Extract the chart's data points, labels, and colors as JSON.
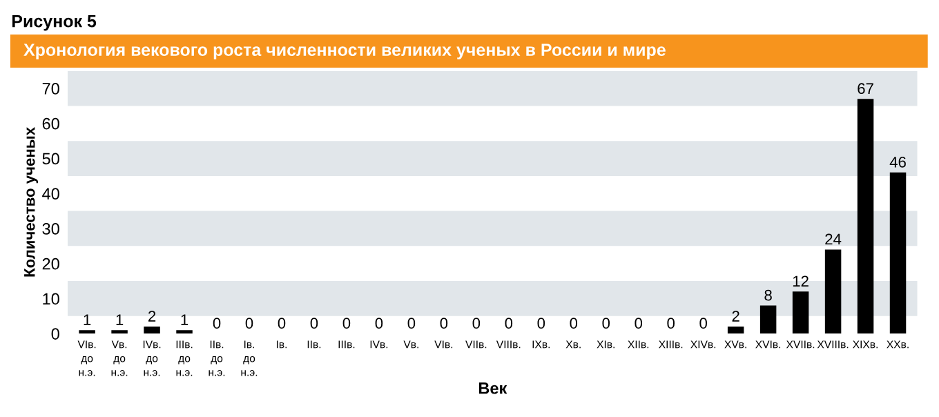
{
  "chart_data": {
    "type": "bar",
    "title": "Хронология векового роста численности великих ученых в России и мире",
    "annotations": [
      "Рисунок 5"
    ],
    "xlabel": "Век",
    "ylabel": "Количество ученых",
    "categories": [
      "VIв.\nдо\nн.э.",
      "Vв.\nдо\nн.э.",
      "IVв.\nдо\nн.э.",
      "IIIв.\nдо\nн.э.",
      "IIв.\nдо\nн.э.",
      "Iв.\nдо\nн.э.",
      "Iв.",
      "IIв.",
      "IIIв.",
      "IVв.",
      "Vв.",
      "VIв.",
      "VIIв.",
      "VIIIв.",
      "IXв.",
      "Xв.",
      "XIв.",
      "XIIв.",
      "XIIIв.",
      "XIVв.",
      "XVв.",
      "XVIв.",
      "XVIIв.",
      "XVIIIв.",
      "XIXв.",
      "XXв."
    ],
    "values": [
      1,
      1,
      2,
      1,
      0,
      0,
      0,
      0,
      0,
      0,
      0,
      0,
      0,
      0,
      0,
      0,
      0,
      0,
      0,
      0,
      2,
      8,
      12,
      24,
      67,
      46
    ],
    "color": "#000000",
    "ylim": [
      0,
      75
    ],
    "yticks": [
      0,
      10,
      20,
      30,
      40,
      50,
      60,
      70
    ],
    "bands": [
      {
        "axis": "y",
        "from": 5,
        "to": 15,
        "color": "#e1e6ea"
      },
      {
        "axis": "y",
        "from": 25,
        "to": 35,
        "color": "#e1e6ea"
      },
      {
        "axis": "y",
        "from": 45,
        "to": 55,
        "color": "#e1e6ea"
      },
      {
        "axis": "y",
        "from": 65,
        "to": 75,
        "color": "#e1e6ea"
      }
    ],
    "data_labels": true,
    "grid": false,
    "legend": false
  }
}
